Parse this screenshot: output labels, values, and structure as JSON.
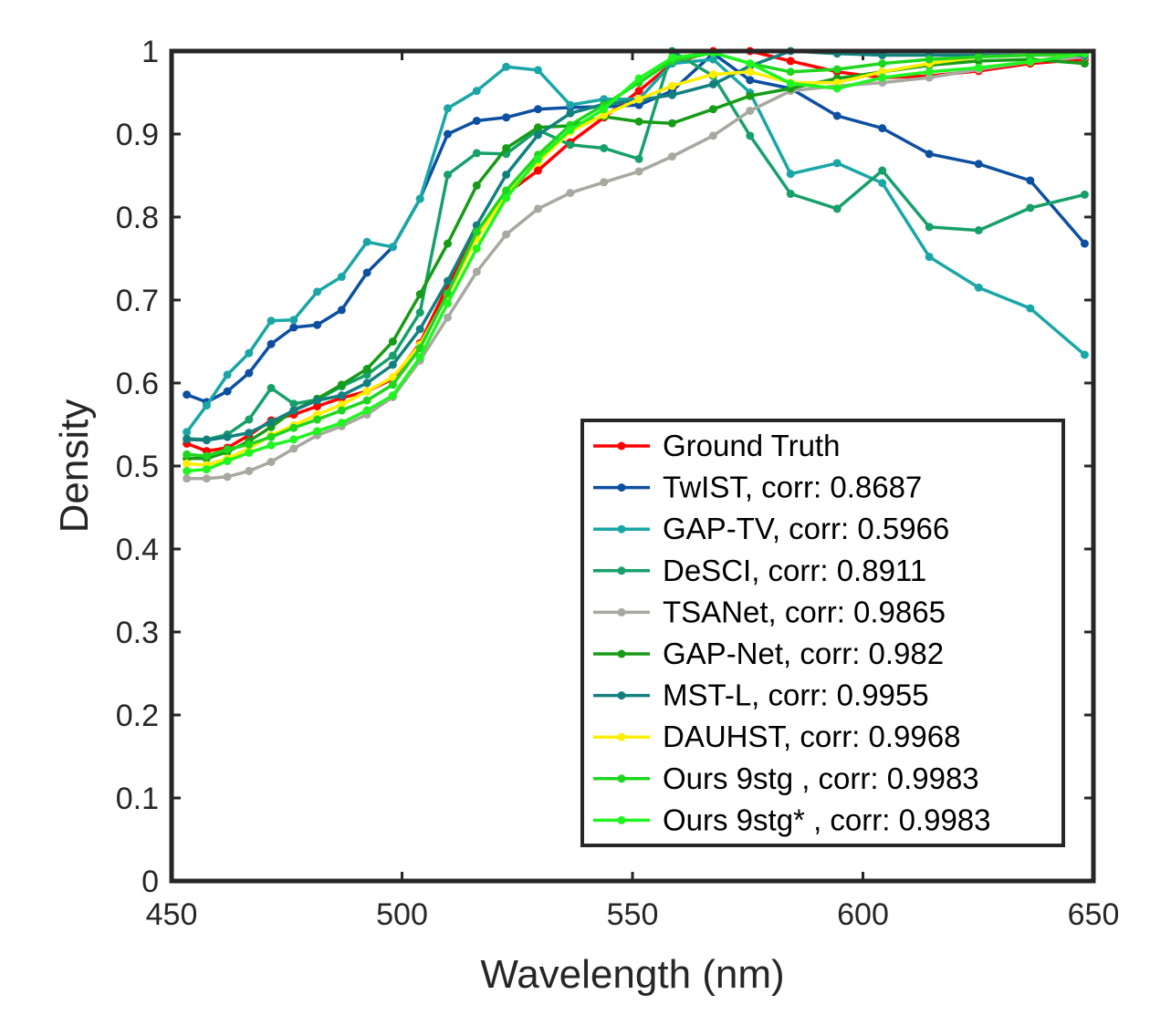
{
  "chart_data": {
    "type": "line",
    "title": "",
    "xlabel": "Wavelength (nm)",
    "ylabel": "Density",
    "xlim": [
      450,
      650
    ],
    "ylim": [
      0,
      1
    ],
    "xticks": [
      450,
      500,
      550,
      600,
      650
    ],
    "xtick_labels": [
      "450",
      "500",
      "550",
      "600",
      "650"
    ],
    "yticks": [
      0,
      0.1,
      0.2,
      0.3,
      0.4,
      0.5,
      0.6,
      0.7,
      0.8,
      0.9,
      1
    ],
    "ytick_labels": [
      "0",
      "0.1",
      "0.2",
      "0.3",
      "0.4",
      "0.5",
      "0.6",
      "0.7",
      "0.8",
      "0.9",
      "1"
    ],
    "grid": false,
    "legend_position": "bottom-right",
    "x": [
      453.3,
      457.6,
      462.1,
      466.8,
      471.6,
      476.5,
      481.6,
      486.9,
      492.4,
      498.0,
      503.9,
      509.9,
      516.2,
      522.6,
      529.5,
      536.5,
      543.8,
      551.4,
      558.6,
      567.5,
      575.5,
      584.3,
      594.4,
      604.2,
      614.4,
      625.1,
      636.3,
      648.1
    ],
    "series": [
      {
        "name": "Ground Truth",
        "color": "#ff0000",
        "values": [
          0.527,
          0.518,
          0.522,
          0.537,
          0.555,
          0.562,
          0.572,
          0.582,
          0.59,
          0.605,
          0.648,
          0.717,
          0.783,
          0.828,
          0.856,
          0.89,
          0.92,
          0.952,
          0.985,
          1.0,
          1.0,
          0.988,
          0.975,
          0.968,
          0.97,
          0.976,
          0.985,
          0.99
        ]
      },
      {
        "name": "TwIST, corr: 0.8687",
        "color": "#0d4fa0",
        "values": [
          0.586,
          0.577,
          0.59,
          0.612,
          0.647,
          0.667,
          0.67,
          0.688,
          0.733,
          0.764,
          0.822,
          0.9,
          0.916,
          0.92,
          0.93,
          0.932,
          0.933,
          0.935,
          0.952,
          0.997,
          0.965,
          0.955,
          0.922,
          0.907,
          0.876,
          0.864,
          0.844,
          0.768
        ]
      },
      {
        "name": "GAP-TV, corr: 0.5966",
        "color": "#1aa6a6",
        "values": [
          0.541,
          0.573,
          0.61,
          0.636,
          0.675,
          0.676,
          0.71,
          0.728,
          0.77,
          0.764,
          0.822,
          0.931,
          0.952,
          0.981,
          0.977,
          0.935,
          0.942,
          0.942,
          0.985,
          0.99,
          0.95,
          0.852,
          0.865,
          0.841,
          0.752,
          0.715,
          0.69,
          0.634
        ]
      },
      {
        "name": "DeSCI, corr: 0.8911",
        "color": "#17a06a",
        "values": [
          0.533,
          0.532,
          0.538,
          0.556,
          0.594,
          0.575,
          0.58,
          0.596,
          0.61,
          0.633,
          0.685,
          0.851,
          0.877,
          0.876,
          0.905,
          0.887,
          0.883,
          0.87,
          1.0,
          0.97,
          0.898,
          0.828,
          0.81,
          0.856,
          0.788,
          0.784,
          0.811,
          0.827
        ]
      },
      {
        "name": "TSANet, corr: 0.9865",
        "color": "#a8a8a0",
        "values": [
          0.485,
          0.485,
          0.487,
          0.494,
          0.505,
          0.521,
          0.537,
          0.548,
          0.562,
          0.583,
          0.627,
          0.679,
          0.734,
          0.779,
          0.81,
          0.829,
          0.842,
          0.855,
          0.873,
          0.898,
          0.928,
          0.952,
          0.958,
          0.962,
          0.968,
          0.978,
          0.987,
          0.993
        ]
      },
      {
        "name": "GAP-Net, corr: 0.982",
        "color": "#179c17",
        "values": [
          0.509,
          0.509,
          0.517,
          0.53,
          0.547,
          0.567,
          0.581,
          0.598,
          0.617,
          0.65,
          0.707,
          0.768,
          0.838,
          0.883,
          0.908,
          0.91,
          0.921,
          0.915,
          0.913,
          0.93,
          0.946,
          0.955,
          0.967,
          0.975,
          0.983,
          0.988,
          0.99,
          0.985
        ]
      },
      {
        "name": "MST-L, corr: 0.9955",
        "color": "#138080",
        "values": [
          0.532,
          0.531,
          0.535,
          0.54,
          0.553,
          0.567,
          0.579,
          0.585,
          0.6,
          0.622,
          0.665,
          0.723,
          0.79,
          0.851,
          0.899,
          0.925,
          0.936,
          0.941,
          0.947,
          0.96,
          0.982,
          1.0,
          0.997,
          0.995,
          0.995,
          0.995,
          0.995,
          0.995
        ]
      },
      {
        "name": "DAUHST, corr: 0.9968",
        "color": "#ffee00",
        "values": [
          0.503,
          0.501,
          0.509,
          0.521,
          0.537,
          0.549,
          0.562,
          0.574,
          0.59,
          0.607,
          0.646,
          0.706,
          0.774,
          0.828,
          0.866,
          0.903,
          0.923,
          0.942,
          0.958,
          0.972,
          0.975,
          0.962,
          0.962,
          0.975,
          0.985,
          0.993,
          0.995,
          0.997
        ]
      },
      {
        "name": "Ours 9stg , corr: 0.9983",
        "color": "#1fd61f",
        "values": [
          0.514,
          0.512,
          0.52,
          0.526,
          0.535,
          0.546,
          0.556,
          0.567,
          0.579,
          0.598,
          0.642,
          0.708,
          0.782,
          0.832,
          0.875,
          0.911,
          0.935,
          0.962,
          0.988,
          0.998,
          0.985,
          0.975,
          0.978,
          0.985,
          0.99,
          0.993,
          0.995,
          0.998
        ]
      },
      {
        "name": "Ours 9stg* , corr: 0.9983",
        "color": "#21f521",
        "values": [
          0.494,
          0.496,
          0.506,
          0.516,
          0.525,
          0.532,
          0.542,
          0.552,
          0.567,
          0.585,
          0.631,
          0.696,
          0.762,
          0.823,
          0.87,
          0.905,
          0.93,
          0.967,
          0.992,
          0.998,
          0.985,
          0.961,
          0.955,
          0.968,
          0.975,
          0.98,
          0.987,
          0.997
        ]
      }
    ]
  }
}
